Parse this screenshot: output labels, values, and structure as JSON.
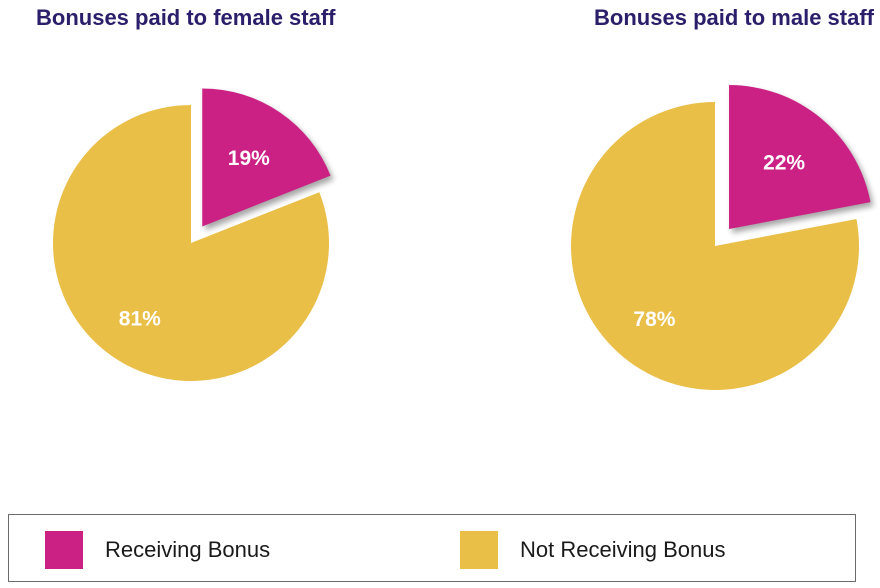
{
  "colors": {
    "receiving": "#cc2184",
    "not_receiving": "#eabf48",
    "title": "#2b1f6b"
  },
  "chart_data": [
    {
      "type": "pie",
      "title": "Bonuses paid to female staff",
      "slices": [
        {
          "name": "Receiving Bonus",
          "value": 19,
          "label": "19%",
          "exploded": true
        },
        {
          "name": "Not Receiving Bonus",
          "value": 81,
          "label": "81%",
          "exploded": false
        }
      ]
    },
    {
      "type": "pie",
      "title": "Bonuses paid to male staff",
      "slices": [
        {
          "name": "Receiving Bonus",
          "value": 22,
          "label": "22%",
          "exploded": true
        },
        {
          "name": "Not Receiving Bonus",
          "value": 78,
          "label": "78%",
          "exploded": false
        }
      ]
    }
  ],
  "legend": {
    "placement": "bottom",
    "items": [
      {
        "label": "Receiving Bonus",
        "color": "#cc2184"
      },
      {
        "label": "Not Receiving Bonus",
        "color": "#eabf48"
      }
    ]
  }
}
